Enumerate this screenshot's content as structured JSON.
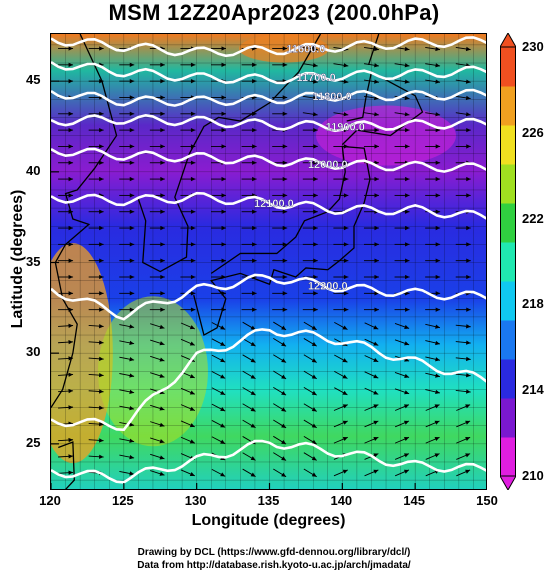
{
  "title": "MSM 12Z20Apr2023 (200.0hPa)",
  "x_axis": {
    "label": "Longitude (degrees)",
    "range": [
      120,
      150
    ],
    "ticks": [
      "120",
      "125",
      "130",
      "135",
      "140",
      "145",
      "150"
    ]
  },
  "y_axis": {
    "label": "Latitude  (degrees)",
    "range": [
      22.4,
      47.6
    ],
    "ticks": [
      "25",
      "30",
      "35",
      "40",
      "45"
    ]
  },
  "colorbar": {
    "range": [
      210,
      230
    ],
    "ticks": [
      "230",
      "226",
      "222",
      "218",
      "214",
      "210"
    ],
    "colors": [
      "#e01ee0",
      "#7a18d0",
      "#2a2ae0",
      "#1a78f0",
      "#10c8f0",
      "#20e8b0",
      "#30d040",
      "#a0e020",
      "#f0e020",
      "#f0a020",
      "#f05020"
    ]
  },
  "contours": [
    {
      "label": "11600.0",
      "lat_at_lon": [
        47.3,
        46.9,
        46.6,
        46.7,
        46.9,
        47.1,
        47.2
      ],
      "label_lon": 137.5
    },
    {
      "label": "11700.0",
      "lat_at_lon": [
        46.0,
        45.5,
        45.2,
        45.1,
        45.3,
        45.4,
        45.6
      ],
      "label_lon": 138.2
    },
    {
      "label": "11800.0",
      "lat_at_lon": [
        44.4,
        43.9,
        43.9,
        44.0,
        44.2,
        44.2,
        44.3
      ],
      "label_lon": 139.3
    },
    {
      "label": "11900.0",
      "lat_at_lon": [
        42.8,
        42.9,
        42.8,
        42.6,
        42.5,
        42.6,
        42.7
      ],
      "label_lon": 140.2
    },
    {
      "label": "12000.0",
      "lat_at_lon": [
        41.2,
        40.9,
        40.8,
        40.6,
        40.4,
        40.3,
        40.2
      ],
      "label_lon": 139.0
    },
    {
      "label": "12100.0",
      "lat_at_lon": [
        38.6,
        38.4,
        38.6,
        38.3,
        37.9,
        37.9,
        37.5
      ],
      "label_lon": 135.3
    },
    {
      "label": "12200.0",
      "lat_at_lon": [
        33.5,
        32.1,
        33.5,
        34.2,
        33.6,
        33.3,
        33.1
      ],
      "label_lon": 139.0
    },
    {
      "label": "",
      "lat_at_lon": [
        26.3,
        26.0,
        29.8,
        31.3,
        30.7,
        29.5,
        28.5
      ],
      "label_lon": null
    },
    {
      "label": "",
      "lat_at_lon": [
        23.5,
        23.1,
        24.1,
        25.1,
        24.5,
        23.8,
        23.6
      ],
      "label_lon": null
    }
  ],
  "colors": {
    "contour": "#ffffff",
    "arrow": "#000000",
    "coast": "#000000"
  },
  "credits": {
    "line1": "Drawing by DCL (https://www.gfd-dennou.org/library/dcl/)",
    "line2": "Data from http://database.rish.kyoto-u.ac.jp/arch/jmadata/"
  }
}
